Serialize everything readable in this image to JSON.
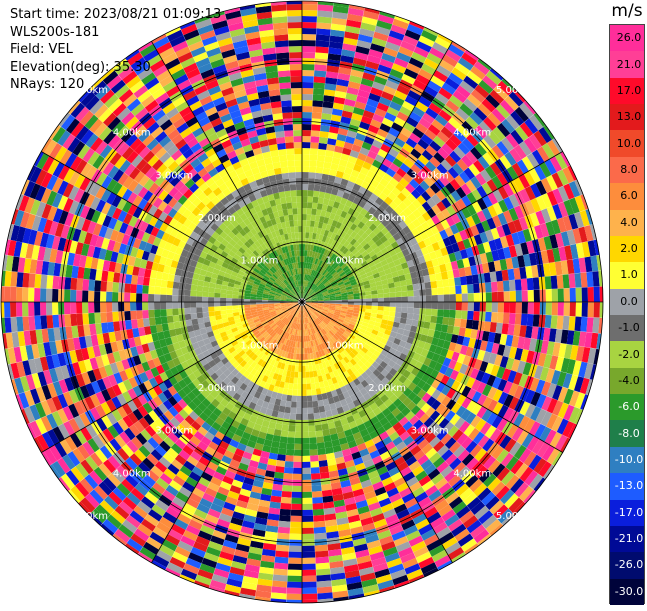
{
  "header": {
    "start_time": "Start time: 2023/08/21 01:09:13",
    "instrument": "WLS200s-181",
    "field": "Field: VEL",
    "elevation": "Elevation(deg): 35.30",
    "nrays": "NRays: 120"
  },
  "ppi": {
    "range_ring_labels": [
      "1.00km",
      "2.00km",
      "3.00km",
      "4.00km",
      "5.00km"
    ],
    "num_rays": 120,
    "num_rings": 5,
    "spoke_count": 12,
    "colors": {
      "background": "#ffffff",
      "ring_lines": "#000000",
      "label_text": "#ffffff"
    }
  },
  "colorbar": {
    "unit": "m/s",
    "ticks": [
      "26.0",
      "21.0",
      "17.0",
      "13.0",
      "10.0",
      "8.0",
      "6.0",
      "4.0",
      "2.0",
      "1.0",
      "0.0",
      "-1.0",
      "-2.0",
      "-4.0",
      "-6.0",
      "-8.0",
      "-10.0",
      "-13.0",
      "-17.0",
      "-21.0",
      "-26.0",
      "-30.0"
    ],
    "colors": [
      "#ff2e9a",
      "#ff3f96",
      "#ff0a2a",
      "#e31a1c",
      "#f04a2a",
      "#fb6a4a",
      "#fd8d3c",
      "#feb24c",
      "#ffd700",
      "#ffff33",
      "#9ea2a8",
      "#6e6e6e",
      "#a8d441",
      "#78a82c",
      "#2b9a2b",
      "#1f7f4a",
      "#2f7fc1",
      "#1e5cff",
      "#0a1edc",
      "#000a96",
      "#000b6e",
      "#00033a"
    ]
  }
}
